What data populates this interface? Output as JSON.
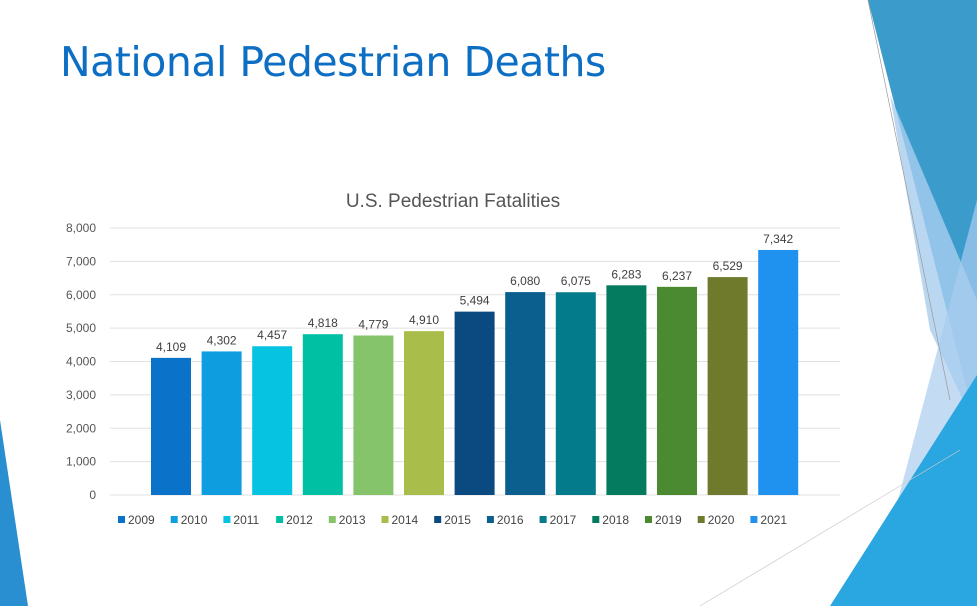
{
  "slide": {
    "title": "National Pedestrian Deaths",
    "accent_colors": [
      "#3b9ccc",
      "#2aa6e0",
      "#a9cdef"
    ]
  },
  "chart_data": {
    "type": "bar",
    "title": "U.S. Pedestrian Fatalities",
    "xlabel": "",
    "ylabel": "",
    "ylim": [
      0,
      8000
    ],
    "yticks": [
      0,
      1000,
      2000,
      3000,
      4000,
      5000,
      6000,
      7000,
      8000
    ],
    "ytick_labels": [
      "0",
      "1,000",
      "2,000",
      "3,000",
      "4,000",
      "5,000",
      "6,000",
      "7,000",
      "8,000"
    ],
    "grid": true,
    "legend_position": "bottom",
    "categories": [
      "2009",
      "2010",
      "2011",
      "2012",
      "2013",
      "2014",
      "2015",
      "2016",
      "2017",
      "2018",
      "2019",
      "2020",
      "2021"
    ],
    "values": [
      4109,
      4302,
      4457,
      4818,
      4779,
      4910,
      5494,
      6080,
      6075,
      6283,
      6237,
      6529,
      7342
    ],
    "data_labels": [
      "4,109",
      "4,302",
      "4,457",
      "4,818",
      "4,779",
      "4,910",
      "5,494",
      "6,080",
      "6,075",
      "6,283",
      "6,237",
      "6,529",
      "7,342"
    ],
    "colors": [
      "#0a73c9",
      "#0e9ee0",
      "#06c3e2",
      "#00c0a3",
      "#86c46b",
      "#a9be4a",
      "#0a4a80",
      "#0a5f8e",
      "#037b8a",
      "#047a5e",
      "#4b8a30",
      "#6f7a2d",
      "#1f92f0"
    ]
  }
}
